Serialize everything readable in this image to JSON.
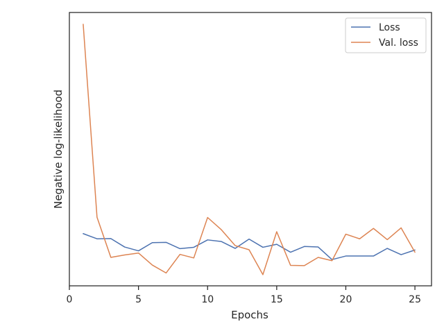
{
  "chart_data": {
    "type": "line",
    "title": "",
    "xlabel": "Epochs",
    "ylabel": "Negative log-likelihood",
    "xlim": [
      0,
      26.2
    ],
    "ylim": [
      0.0,
      1.0
    ],
    "x_ticks": [
      0,
      5,
      10,
      15,
      20,
      25
    ],
    "y_ticks": [],
    "grid": false,
    "legend_position": "top-right",
    "series": [
      {
        "name": "Loss",
        "color": "#4c72b0",
        "x": [
          1,
          2,
          3,
          4,
          5,
          6,
          7,
          8,
          9,
          10,
          11,
          12,
          13,
          14,
          15,
          16,
          17,
          18,
          19,
          20,
          21,
          22,
          23,
          24,
          25
        ],
        "values": [
          0.191,
          0.172,
          0.173,
          0.142,
          0.128,
          0.158,
          0.159,
          0.136,
          0.141,
          0.168,
          0.162,
          0.137,
          0.171,
          0.141,
          0.152,
          0.123,
          0.144,
          0.142,
          0.096,
          0.109,
          0.109,
          0.109,
          0.137,
          0.114,
          0.131
        ]
      },
      {
        "name": "Val. loss",
        "color": "#dd8452",
        "x": [
          1,
          2,
          3,
          4,
          5,
          6,
          7,
          8,
          9,
          10,
          11,
          12,
          13,
          14,
          15,
          16,
          17,
          18,
          19,
          20,
          21,
          22,
          23,
          24,
          25
        ],
        "values": [
          0.957,
          0.251,
          0.104,
          0.113,
          0.12,
          0.076,
          0.047,
          0.115,
          0.102,
          0.25,
          0.205,
          0.147,
          0.132,
          0.041,
          0.198,
          0.075,
          0.074,
          0.104,
          0.092,
          0.189,
          0.172,
          0.21,
          0.169,
          0.212,
          0.123
        ]
      }
    ]
  }
}
